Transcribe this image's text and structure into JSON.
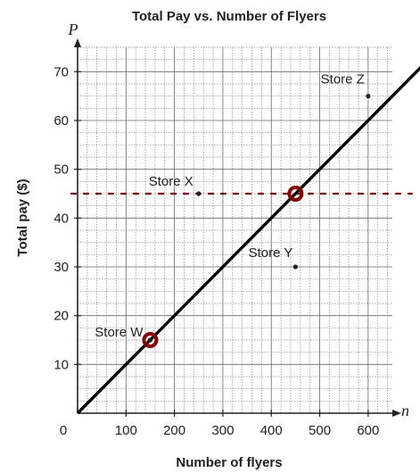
{
  "chart_data": {
    "type": "scatter",
    "title": "Total Pay vs. Number of Flyers",
    "xlabel": "Number of flyers",
    "ylabel": "Total pay ($)",
    "x_variable": "n",
    "y_variable": "P",
    "xlim": [
      0,
      650
    ],
    "ylim": [
      0,
      75
    ],
    "x_ticks": [
      0,
      100,
      200,
      300,
      400,
      500,
      600
    ],
    "y_ticks": [
      10,
      20,
      30,
      40,
      50,
      60,
      70
    ],
    "grid": true,
    "points": [
      {
        "label": "Store W",
        "x": 150,
        "y": 15
      },
      {
        "label": "Store X",
        "x": 250,
        "y": 45
      },
      {
        "label": "Store Y",
        "x": 450,
        "y": 30
      },
      {
        "label": "Store Z",
        "x": 600,
        "y": 65
      }
    ],
    "annotations": {
      "line": {
        "from": [
          0,
          0
        ],
        "slope": 0.1,
        "color": "#000000"
      },
      "horizontal_dotted": {
        "y": 45,
        "color": "#8b0000"
      },
      "circled_points": [
        [
          150,
          15
        ],
        [
          450,
          45
        ]
      ],
      "circle_color": "#8b0000"
    }
  }
}
